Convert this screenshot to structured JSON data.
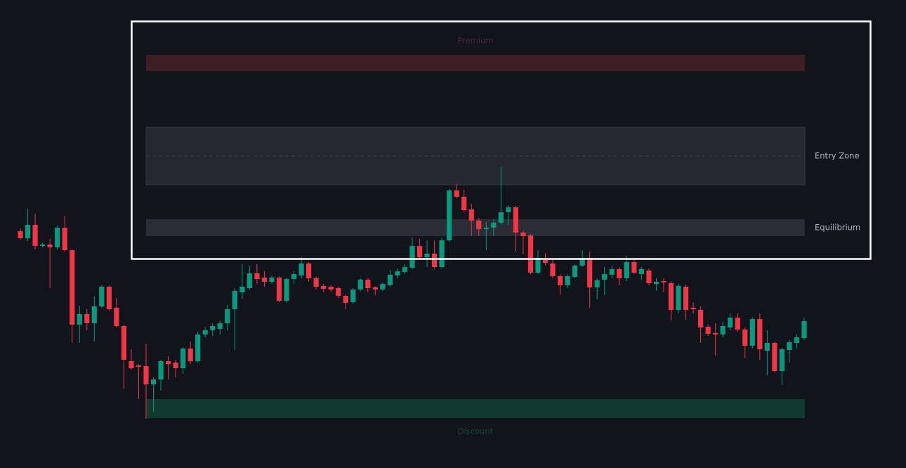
{
  "chart_data": {
    "type": "candlestick",
    "up_color": "#089981",
    "down_color": "#f23645",
    "ylim": [
      0,
      666
    ],
    "categories": [
      null,
      null,
      null,
      null,
      null,
      null,
      null,
      null,
      null,
      null,
      null,
      null,
      null,
      null,
      null,
      null,
      null,
      null,
      null,
      null,
      null,
      null,
      null,
      null,
      null,
      null,
      null,
      null,
      null,
      null,
      null,
      null,
      null,
      null,
      null,
      null,
      null,
      null,
      null,
      null,
      null,
      null,
      null,
      null,
      null,
      null,
      null,
      null,
      null,
      null,
      null,
      null,
      null,
      null,
      null,
      null,
      null,
      null,
      null,
      null,
      null,
      null,
      null,
      null,
      null,
      null,
      null,
      null,
      null,
      null,
      null,
      null,
      null,
      null,
      null,
      null,
      null,
      null,
      null,
      null,
      null,
      null,
      null,
      null,
      null,
      null,
      null,
      null,
      null,
      null,
      null,
      null,
      null,
      null,
      null,
      null,
      null,
      null,
      null,
      null,
      null,
      null,
      null,
      null,
      null,
      null,
      null
    ],
    "ohlc": [
      [
        337,
        341,
        325,
        327
      ],
      [
        327,
        369,
        323,
        346
      ],
      [
        346,
        362,
        311,
        316
      ],
      [
        316,
        320,
        314,
        318
      ],
      [
        318,
        326,
        256,
        314
      ],
      [
        314,
        345,
        311,
        342
      ],
      [
        342,
        359,
        308,
        310
      ],
      [
        310,
        311,
        178,
        204
      ],
      [
        204,
        231,
        178,
        219
      ],
      [
        219,
        226,
        196,
        206
      ],
      [
        206,
        244,
        180,
        230
      ],
      [
        230,
        260,
        228,
        258
      ],
      [
        258,
        260,
        224,
        226
      ],
      [
        228,
        242,
        200,
        202
      ],
      [
        202,
        204,
        113,
        154
      ],
      [
        152,
        169,
        140,
        142
      ],
      [
        146,
        148,
        98,
        144
      ],
      [
        145,
        177,
        70,
        119
      ],
      [
        119,
        129,
        80,
        126
      ],
      [
        126,
        154,
        110,
        152
      ],
      [
        152,
        159,
        126,
        148
      ],
      [
        150,
        154,
        129,
        142
      ],
      [
        142,
        172,
        134,
        170
      ],
      [
        170,
        180,
        148,
        152
      ],
      [
        152,
        194,
        150,
        190
      ],
      [
        190,
        200,
        186,
        196
      ],
      [
        196,
        206,
        188,
        202
      ],
      [
        198,
        210,
        190,
        206
      ],
      [
        206,
        232,
        196,
        226
      ],
      [
        226,
        256,
        168,
        252
      ],
      [
        250,
        290,
        240,
        258
      ],
      [
        256,
        288,
        254,
        277
      ],
      [
        277,
        290,
        262,
        269
      ],
      [
        271,
        280,
        258,
        265
      ],
      [
        265,
        274,
        262,
        271
      ],
      [
        271,
        273,
        236,
        238
      ],
      [
        238,
        271,
        235,
        269
      ],
      [
        269,
        280,
        262,
        276
      ],
      [
        274,
        300,
        270,
        291
      ],
      [
        291,
        293,
        265,
        270
      ],
      [
        270,
        272,
        254,
        258
      ],
      [
        259,
        262,
        250,
        255
      ],
      [
        258,
        260,
        251,
        254
      ],
      [
        256,
        258,
        242,
        245
      ],
      [
        245,
        247,
        226,
        235
      ],
      [
        236,
        256,
        234,
        254
      ],
      [
        254,
        270,
        252,
        268
      ],
      [
        268,
        270,
        250,
        256
      ],
      [
        257,
        259,
        246,
        254
      ],
      [
        254,
        264,
        252,
        262
      ],
      [
        260,
        282,
        258,
        275
      ],
      [
        274,
        284,
        270,
        280
      ],
      [
        279,
        290,
        276,
        286
      ],
      [
        285,
        328,
        283,
        316
      ],
      [
        316,
        326,
        298,
        300
      ],
      [
        300,
        324,
        286,
        305
      ],
      [
        305,
        324,
        284,
        286
      ],
      [
        286,
        328,
        284,
        324
      ],
      [
        324,
        397,
        322,
        395
      ],
      [
        395,
        404,
        384,
        386
      ],
      [
        386,
        396,
        365,
        367
      ],
      [
        368,
        376,
        330,
        352
      ],
      [
        352,
        356,
        330,
        340
      ],
      [
        340,
        350,
        310,
        342
      ],
      [
        342,
        354,
        330,
        349
      ],
      [
        349,
        429,
        347,
        364
      ],
      [
        364,
        374,
        346,
        371
      ],
      [
        371,
        373,
        308,
        335
      ],
      [
        335,
        337,
        304,
        330
      ],
      [
        331,
        333,
        276,
        278
      ],
      [
        278,
        310,
        276,
        299
      ],
      [
        296,
        306,
        288,
        292
      ],
      [
        291,
        296,
        270,
        273
      ],
      [
        273,
        276,
        246,
        260
      ],
      [
        260,
        276,
        256,
        273
      ],
      [
        272,
        290,
        270,
        288
      ],
      [
        288,
        310,
        286,
        299
      ],
      [
        299,
        308,
        228,
        257
      ],
      [
        257,
        270,
        240,
        267
      ],
      [
        268,
        286,
        246,
        276
      ],
      [
        275,
        288,
        270,
        283
      ],
      [
        283,
        286,
        260,
        270
      ],
      [
        270,
        302,
        266,
        293
      ],
      [
        293,
        296,
        276,
        278
      ],
      [
        276,
        286,
        268,
        283
      ],
      [
        281,
        284,
        260,
        263
      ],
      [
        262,
        270,
        252,
        265
      ],
      [
        266,
        270,
        250,
        264
      ],
      [
        263,
        266,
        210,
        225
      ],
      [
        225,
        262,
        220,
        259
      ],
      [
        258,
        261,
        211,
        225
      ],
      [
        228,
        236,
        220,
        226
      ],
      [
        225,
        230,
        178,
        200
      ],
      [
        201,
        204,
        188,
        191
      ],
      [
        192,
        206,
        160,
        190
      ],
      [
        190,
        208,
        186,
        202
      ],
      [
        200,
        220,
        196,
        214
      ],
      [
        214,
        220,
        194,
        197
      ],
      [
        197,
        200,
        156,
        174
      ],
      [
        174,
        214,
        170,
        212
      ],
      [
        212,
        220,
        154,
        169
      ],
      [
        167,
        196,
        132,
        178
      ],
      [
        178,
        180,
        136,
        138
      ],
      [
        138,
        171,
        118,
        169
      ],
      [
        168,
        182,
        150,
        179
      ],
      [
        178,
        190,
        170,
        186
      ],
      [
        185,
        214,
        182,
        209
      ]
    ],
    "zones": [
      {
        "name": "Premium",
        "range": [
          565,
          588
        ],
        "color": "#3f1f26",
        "label_color": "#4a2a31"
      },
      {
        "name": "Entry Zone",
        "range": [
          403,
          485
        ],
        "mid": 444,
        "color": "#262830",
        "label_color": "#b2b5be"
      },
      {
        "name": "Equilibrium",
        "range": [
          330,
          354
        ],
        "color": "#2a2d35",
        "label_color": "#b2b5be"
      },
      {
        "name": "Discount",
        "range": [
          71,
          98
        ],
        "color": "#113a2e",
        "label_color": "#14473a"
      }
    ]
  }
}
